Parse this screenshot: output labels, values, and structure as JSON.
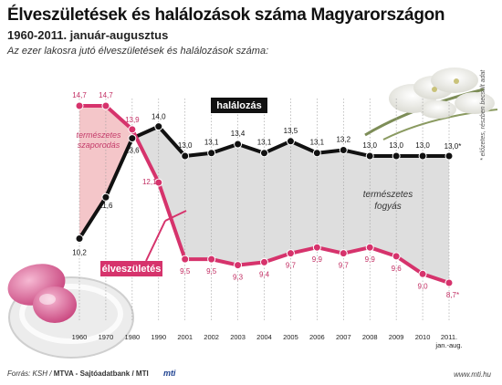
{
  "header": {
    "title": "Élveszületések és halálozások száma Magyarországon",
    "subtitle": "1960-2011. január-augusztus",
    "caption": "Az ezer lakosra jutó élveszületések és halálozások száma:"
  },
  "footer": {
    "source_prefix": "Forrás: KSH / ",
    "source_bold": "MTVA - Sajtóadatbank / MTI",
    "logo": "mti",
    "website": "www.mti.hu"
  },
  "note": "* előzetes, részben becsült adat",
  "annotations": {
    "natural_increase_line1": "természetes",
    "natural_increase_line2": "szaporodás",
    "natural_decrease_line1": "természetes",
    "natural_decrease_line2": "fogyás"
  },
  "colors": {
    "deaths": "#111111",
    "births": "#d6336c",
    "increase_fill": "#f4c6c9",
    "decrease_fill": "#dedede"
  },
  "chart_data": {
    "type": "line",
    "categories": [
      "1960",
      "1970",
      "1980",
      "1990",
      "2001",
      "2002",
      "2003",
      "2004",
      "2005",
      "2006",
      "2007",
      "2008",
      "2009",
      "2010",
      "2011. jan.-aug."
    ],
    "series": [
      {
        "name": "halálozás",
        "values": [
          10.2,
          11.6,
          13.6,
          14.0,
          13.0,
          13.1,
          13.4,
          13.1,
          13.5,
          13.1,
          13.2,
          13.0,
          13.0,
          13.0,
          13.0
        ],
        "labels": [
          "10,2",
          "11,6",
          "13,6",
          "14,0",
          "13,0",
          "13,1",
          "13,4",
          "13,1",
          "13,5",
          "13,1",
          "13,2",
          "13,0",
          "13,0",
          "13,0",
          "13,0*"
        ]
      },
      {
        "name": "élveszületés",
        "values": [
          14.7,
          14.7,
          13.9,
          12.1,
          9.5,
          9.5,
          9.3,
          9.4,
          9.7,
          9.9,
          9.7,
          9.9,
          9.6,
          9.0,
          8.7
        ],
        "labels": [
          "14,7",
          "14,7",
          "13,9",
          "12,1",
          "9,5",
          "9,5",
          "9,3",
          "9,4",
          "9,7",
          "9,9",
          "9,7",
          "9,9",
          "9,6",
          "9,0",
          "8,7*"
        ]
      }
    ]
  }
}
